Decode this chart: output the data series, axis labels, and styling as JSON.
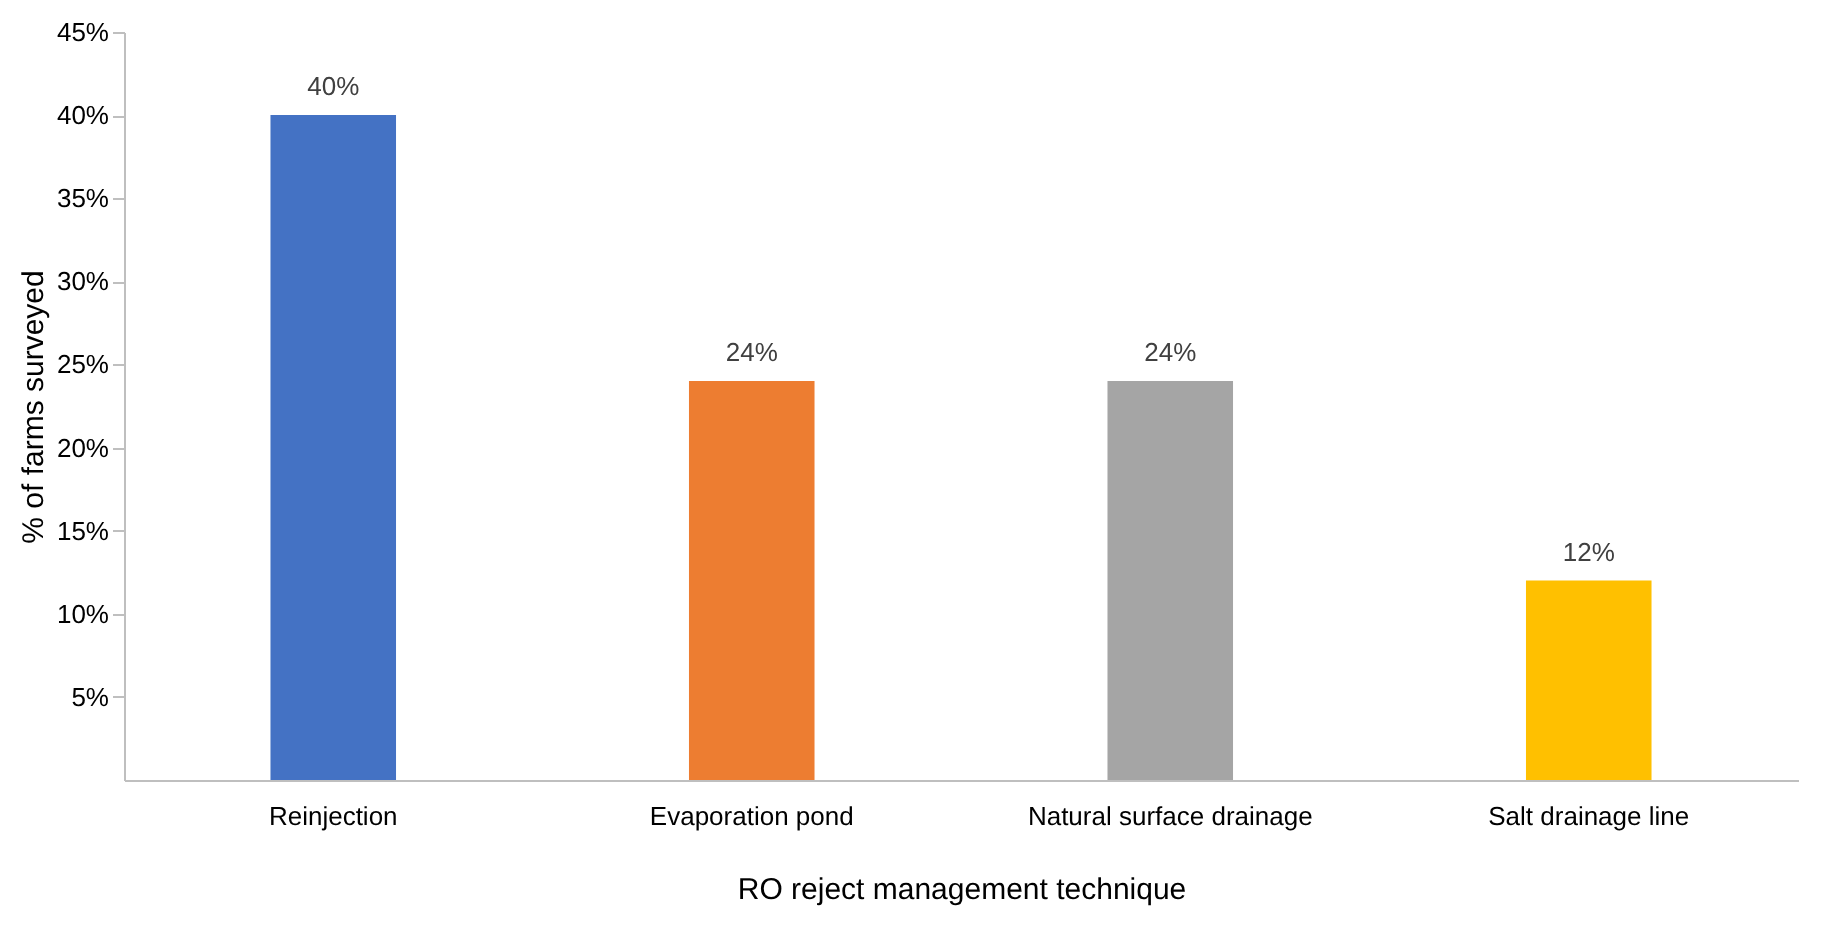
{
  "chart_data": {
    "type": "bar",
    "xlabel": "RO reject management technique",
    "ylabel": "% of farms surveyed",
    "categories": [
      "Reinjection",
      "Evaporation pond",
      "Natural surface drainage",
      "Salt drainage line"
    ],
    "values": [
      40,
      24,
      24,
      12
    ],
    "colors": [
      "#4472c4",
      "#ed7d31",
      "#a5a5a5",
      "#ffc000"
    ],
    "value_labels": [
      "40%",
      "24%",
      "24%",
      "12%"
    ],
    "ylim": [
      0,
      45
    ],
    "yticks": [
      {
        "value": 5,
        "label": "5%"
      },
      {
        "value": 10,
        "label": "10%"
      },
      {
        "value": 15,
        "label": "15%"
      },
      {
        "value": 20,
        "label": "20%"
      },
      {
        "value": 25,
        "label": "25%"
      },
      {
        "value": 30,
        "label": "30%"
      },
      {
        "value": 35,
        "label": "35%"
      },
      {
        "value": 40,
        "label": "40%"
      },
      {
        "value": 45,
        "label": "45%"
      }
    ],
    "grid": false,
    "legend": false
  }
}
